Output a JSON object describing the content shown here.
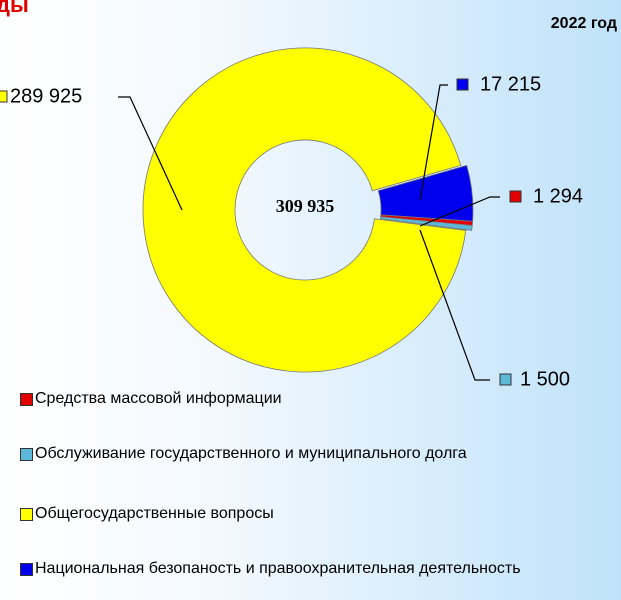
{
  "chart_data": {
    "type": "donut",
    "title": "ды",
    "subtitle": "2022 год",
    "center_label": "309 935",
    "categories": [
      "Средства массовой информации",
      "Обслуживание государственного и муниципального долга",
      "Общегосударственные вопросы",
      "Национальная безопаность и правоохранительная деятельность"
    ],
    "values": [
      1294,
      1500,
      289925,
      17215
    ],
    "value_labels": [
      "1 294",
      "1 500",
      "289 925",
      "17 215"
    ],
    "colors": [
      "#e00000",
      "#5bb8d8",
      "#ffff00",
      "#0000ee"
    ]
  }
}
